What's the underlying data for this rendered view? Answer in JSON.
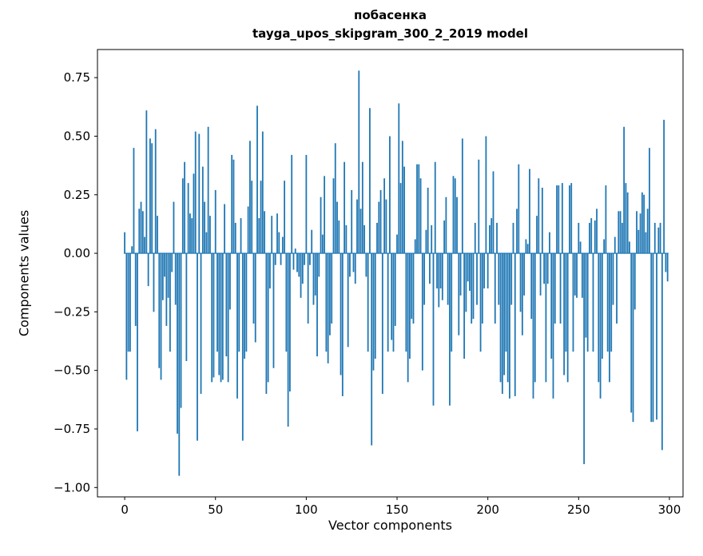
{
  "chart_data": {
    "type": "bar",
    "title": "побасенка",
    "subtitle": "tayga_upos_skipgram_300_2_2019 model",
    "xlabel": "Vector components",
    "ylabel": "Components values",
    "bar_color": "#1f77b4",
    "axis_color": "#000000",
    "legend": "none",
    "grid": false,
    "x_tick_labels": [
      "0",
      "50",
      "100",
      "150",
      "200",
      "250",
      "300"
    ],
    "x_tick_values": [
      0,
      50,
      100,
      150,
      200,
      250,
      300
    ],
    "y_tick_labels": [
      "0.75",
      "0.50",
      "0.25",
      "0.00",
      "−0.25",
      "−0.50",
      "−0.75",
      "−1.00"
    ],
    "y_tick_values": [
      0.75,
      0.5,
      0.25,
      0.0,
      -0.25,
      -0.5,
      -0.75,
      -1.0
    ],
    "xlim": [
      -15,
      307.5
    ],
    "ylim": [
      -1.04,
      0.87
    ],
    "x_start": 0,
    "values": [
      0.09,
      -0.54,
      -0.42,
      -0.42,
      0.03,
      0.45,
      -0.31,
      -0.76,
      0.19,
      0.22,
      0.18,
      0.07,
      0.61,
      -0.14,
      0.49,
      0.47,
      -0.25,
      0.53,
      0.16,
      -0.49,
      -0.54,
      -0.2,
      -0.1,
      -0.31,
      -0.19,
      -0.42,
      -0.08,
      0.22,
      -0.22,
      -0.77,
      -0.95,
      -0.66,
      0.32,
      0.39,
      -0.46,
      0.3,
      0.17,
      0.15,
      0.34,
      0.52,
      -0.8,
      0.51,
      -0.6,
      0.37,
      0.22,
      0.09,
      0.54,
      0.16,
      -0.55,
      -0.53,
      0.27,
      -0.42,
      -0.52,
      -0.55,
      -0.54,
      0.21,
      -0.44,
      -0.55,
      -0.24,
      0.42,
      0.4,
      0.13,
      -0.62,
      -0.42,
      0.15,
      -0.8,
      -0.45,
      -0.42,
      0.2,
      0.48,
      0.31,
      -0.3,
      -0.38,
      0.63,
      0.15,
      0.31,
      0.52,
      0.18,
      -0.6,
      -0.55,
      -0.15,
      0.16,
      -0.49,
      -0.05,
      0.17,
      0.09,
      -0.05,
      0.07,
      0.31,
      -0.42,
      -0.74,
      -0.59,
      0.42,
      -0.07,
      0.02,
      -0.08,
      -0.1,
      -0.19,
      -0.13,
      -0.05,
      0.42,
      -0.3,
      -0.05,
      0.1,
      -0.22,
      -0.18,
      -0.44,
      -0.1,
      0.24,
      0.08,
      0.33,
      -0.42,
      -0.47,
      -0.35,
      -0.3,
      0.32,
      0.47,
      0.22,
      0.14,
      -0.52,
      -0.61,
      0.39,
      0.12,
      -0.4,
      -0.1,
      0.27,
      -0.08,
      -0.13,
      0.23,
      0.78,
      0.19,
      0.39,
      0.12,
      -0.1,
      -0.42,
      0.62,
      -0.82,
      -0.5,
      -0.45,
      0.13,
      0.22,
      0.27,
      -0.6,
      0.32,
      0.23,
      -0.42,
      0.5,
      -0.37,
      -0.42,
      -0.31,
      0.08,
      0.64,
      0.3,
      0.48,
      0.37,
      -0.42,
      -0.55,
      -0.45,
      -0.28,
      -0.3,
      0.06,
      0.38,
      0.38,
      0.32,
      -0.5,
      -0.22,
      0.1,
      0.28,
      -0.13,
      0.12,
      -0.65,
      0.39,
      -0.15,
      -0.23,
      -0.15,
      -0.2,
      0.14,
      0.24,
      -0.22,
      -0.65,
      -0.42,
      0.33,
      0.32,
      0.24,
      -0.35,
      -0.18,
      0.49,
      -0.45,
      -0.25,
      -0.12,
      -0.16,
      -0.3,
      -0.28,
      0.13,
      -0.22,
      0.4,
      -0.42,
      -0.3,
      -0.15,
      0.5,
      -0.15,
      0.12,
      0.15,
      0.35,
      -0.3,
      0.13,
      -0.22,
      -0.55,
      -0.6,
      -0.52,
      -0.42,
      -0.55,
      -0.62,
      -0.22,
      0.13,
      -0.61,
      0.19,
      0.38,
      -0.25,
      -0.35,
      -0.18,
      0.06,
      0.04,
      0.36,
      -0.28,
      -0.62,
      -0.55,
      0.16,
      0.32,
      -0.18,
      0.28,
      -0.13,
      -0.55,
      -0.13,
      0.09,
      -0.45,
      -0.62,
      -0.3,
      0.29,
      0.29,
      -0.3,
      0.3,
      -0.52,
      -0.42,
      -0.55,
      0.29,
      0.3,
      -0.42,
      -0.18,
      -0.19,
      0.13,
      0.05,
      -0.19,
      -0.9,
      -0.36,
      -0.42,
      0.13,
      0.15,
      -0.42,
      0.14,
      0.19,
      -0.55,
      -0.62,
      -0.45,
      0.06,
      0.29,
      -0.42,
      -0.55,
      -0.42,
      -0.22,
      0.07,
      -0.3,
      0.18,
      0.18,
      0.13,
      0.54,
      0.3,
      0.26,
      0.05,
      -0.68,
      -0.72,
      -0.24,
      0.18,
      0.1,
      0.17,
      0.26,
      0.25,
      0.09,
      0.19,
      0.45,
      -0.72,
      -0.72,
      0.13,
      -0.71,
      0.11,
      0.13,
      -0.84,
      0.57,
      -0.08,
      -0.12
    ]
  }
}
